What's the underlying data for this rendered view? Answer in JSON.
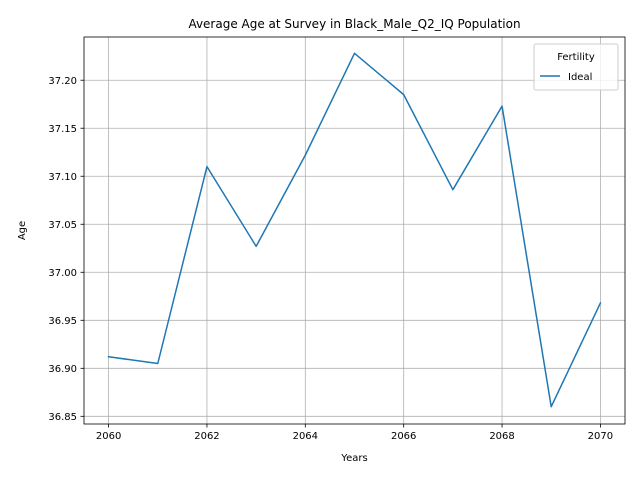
{
  "chart_data": {
    "type": "line",
    "title": "Average Age at Survey in Black_Male_Q2_IQ Population",
    "xlabel": "Years",
    "ylabel": "Age",
    "xlim": [
      2059.5,
      2070.5
    ],
    "ylim": [
      36.842,
      37.245
    ],
    "xticks": [
      2060,
      2062,
      2064,
      2066,
      2068,
      2070
    ],
    "xtick_labels": [
      "2060",
      "2062",
      "2064",
      "2066",
      "2068",
      "2070"
    ],
    "yticks": [
      36.85,
      36.9,
      36.95,
      37.0,
      37.05,
      37.1,
      37.15,
      37.2
    ],
    "ytick_labels": [
      "36.85",
      "36.90",
      "36.95",
      "37.00",
      "37.05",
      "37.10",
      "37.15",
      "37.20"
    ],
    "grid": true,
    "legend": {
      "title": "Fertility",
      "placement": "top-right"
    },
    "series": [
      {
        "name": "Ideal",
        "color": "#1f77b4",
        "x": [
          2060,
          2061,
          2062,
          2063,
          2064,
          2065,
          2066,
          2067,
          2068,
          2069,
          2070
        ],
        "values": [
          36.912,
          36.905,
          37.11,
          37.027,
          37.122,
          37.228,
          37.185,
          37.086,
          37.173,
          36.86,
          36.968
        ]
      }
    ]
  }
}
